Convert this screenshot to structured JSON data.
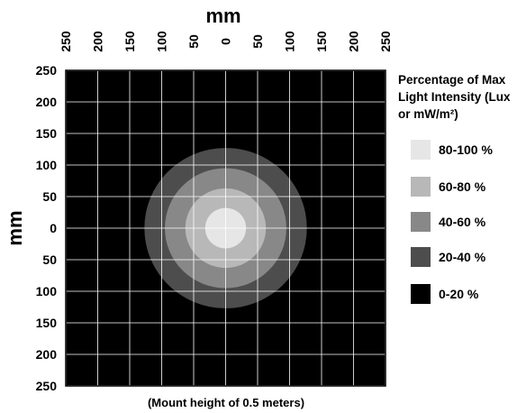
{
  "chart_data": {
    "type": "heatmap",
    "title": "",
    "xlabel": "mm",
    "ylabel": "mm",
    "x_ticks": [
      "250",
      "200",
      "150",
      "100",
      "50",
      "0",
      "50",
      "100",
      "150",
      "200",
      "250"
    ],
    "y_ticks": [
      "250",
      "200",
      "150",
      "100",
      "50",
      "0",
      "50",
      "100",
      "150",
      "200",
      "250"
    ],
    "xlim": [
      -250,
      250
    ],
    "ylim": [
      -250,
      250
    ],
    "grid": true,
    "background_color": "#000000",
    "grid_color": "#ffffff",
    "pattern": "concentric-circles",
    "zones": [
      {
        "label": "80-100 %",
        "radius_mm": 32,
        "color": "#e6e6e6"
      },
      {
        "label": "60-80 %",
        "radius_mm": 63,
        "color": "#b8b8b8"
      },
      {
        "label": "40-60 %",
        "radius_mm": 95,
        "color": "#888888"
      },
      {
        "label": "20-40 %",
        "radius_mm": 127,
        "color": "#4d4d4d"
      },
      {
        "label": "0-20 %",
        "radius_mm": null,
        "color": "#000000"
      }
    ],
    "legend": {
      "title": "Percentage of Max Light Intensity (Lux or mW/m²)",
      "title_lines": [
        "Percentage of Max",
        "Light Intensity (Lux",
        "or mW/m²)"
      ],
      "position": "right"
    },
    "footer": "(Mount height of 0.5 meters)"
  }
}
